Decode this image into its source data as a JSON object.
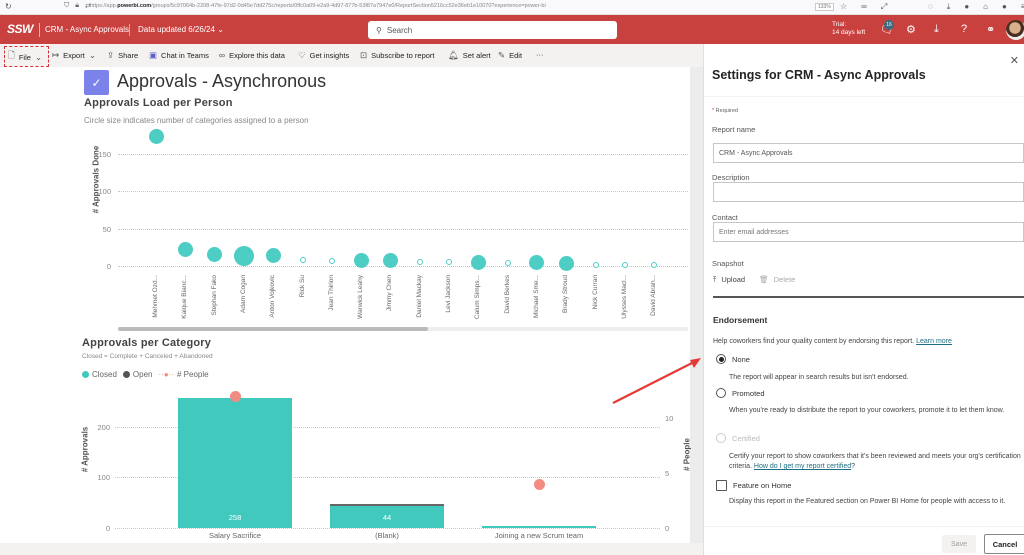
{
  "browser": {
    "url_prefix": "https://app.",
    "url_domain": "powerbi.com",
    "url_rest": "/groups/5c97064b-2208-47fe-97d2-0d45e7dd275c/reports/0ffc0a09-e2a9-4d97-877b-53f87a7947e0/ReportSection5216cc52e36eb1e10070?experience=power-bi",
    "zoom_level": "133%"
  },
  "header": {
    "logo": "SSW",
    "report_name": "CRM - Async Approvals",
    "data_updated": "Data updated 6/26/24",
    "search_placeholder": "Search",
    "trial_line1": "Trial:",
    "trial_line2": "14 days left",
    "notification_count": "16",
    "brand_color": "#c9413f"
  },
  "toolbar": {
    "file": "File",
    "export": "Export",
    "share": "Share",
    "chat_in_teams": "Chat in Teams",
    "explore": "Explore this data",
    "insights": "Get insights",
    "subscribe": "Subscribe to report",
    "alert": "Set alert",
    "edit": "Edit",
    "more": "···"
  },
  "page": {
    "title": "Approvals - Asynchronous"
  },
  "chart_data": [
    {
      "type": "scatter",
      "title": "Approvals Load per Person",
      "subtitle": "Circle size indicates number of categories assigned to a person",
      "xlabel": "",
      "ylabel": "# Approvals Done",
      "yticks": [
        "0",
        "50",
        "100",
        "150"
      ],
      "ylim": [
        0,
        170
      ],
      "categories": [
        "Mehmet Ozd...",
        "Kaique Bianc...",
        "Stephan Fako",
        "Adam Cogan",
        "Anton Vojkovic",
        "Rick Su",
        "Jean Thirion",
        "Warwick Leahy",
        "Jimmy Chen",
        "Daniel Mackay",
        "Levi Jackson",
        "Calum Simps...",
        "David Berkes",
        "Michael Sme...",
        "Brady Stroud",
        "Nick Curran",
        "Ulysses Macl...",
        "David Abrah..."
      ],
      "values": [
        175,
        22,
        16,
        14,
        14,
        8,
        7,
        8,
        8,
        6,
        5,
        5,
        4,
        5,
        4,
        2,
        2,
        1
      ],
      "sizes": [
        6,
        6,
        6,
        9,
        6,
        2,
        2,
        6,
        6,
        2,
        2,
        6,
        2,
        6,
        6,
        2,
        2,
        2
      ],
      "grid": true
    },
    {
      "type": "bar",
      "title": "Approvals per Category",
      "subtitle": "Closed = Complete + Canceled + Abandoned",
      "categories": [
        "Salary Sacrifice",
        "(Blank)",
        "Joining a new Scrum team"
      ],
      "series": [
        {
          "name": "Closed",
          "color": "#41c9be",
          "values": [
            258,
            44,
            2
          ]
        },
        {
          "name": "Open",
          "color": "#666666",
          "values": [
            0,
            2,
            0
          ]
        },
        {
          "name": "# People",
          "color": "#f28b82",
          "type": "line-markers",
          "axis": "right",
          "values": [
            12,
            null,
            4
          ]
        }
      ],
      "data_labels": [
        "258",
        "44",
        ""
      ],
      "ylabel": "# Approvals",
      "ylabel_right": "# People",
      "yticks": [
        "0",
        "100",
        "200"
      ],
      "yticks_right": [
        "0",
        "5",
        "10"
      ],
      "ylim": [
        0,
        260
      ],
      "ylim_right": [
        0,
        13
      ],
      "legend_position": "top-left",
      "grid": true
    }
  ],
  "legend": {
    "closed": "Closed",
    "open": "Open",
    "people": "# People"
  },
  "panel": {
    "title": "Settings for CRM - Async Approvals",
    "required_note": "Required",
    "report_name_label": "Report name",
    "report_name_value": "CRM - Async Approvals",
    "description_label": "Description",
    "description_value": "",
    "contact_label": "Contact",
    "contact_placeholder": "Enter email addresses",
    "snapshot_label": "Snapshot",
    "upload": "Upload",
    "delete": "Delete",
    "endorsement_title": "Endorsement",
    "endorsement_help": "Help coworkers find your quality content by endorsing this report.",
    "learn_more": "Learn more",
    "options": [
      {
        "label": "None",
        "desc": "The report will appear in search results but isn't endorsed.",
        "checked": true
      },
      {
        "label": "Promoted",
        "desc": "When you're ready to distribute the report to your coworkers, promote it to let them know.",
        "checked": false
      },
      {
        "label": "Certified",
        "desc": "Certify your report to show coworkers that it's been reviewed and meets your org's certification criteria.",
        "desc_link": "How do I get my report certified",
        "desc_suffix": "?",
        "checked": false,
        "disabled": true
      }
    ],
    "feature_label": "Feature on Home",
    "feature_desc": "Display this report in the Featured section on Power BI Home for people with access to it.",
    "save": "Save",
    "cancel": "Cancel"
  }
}
